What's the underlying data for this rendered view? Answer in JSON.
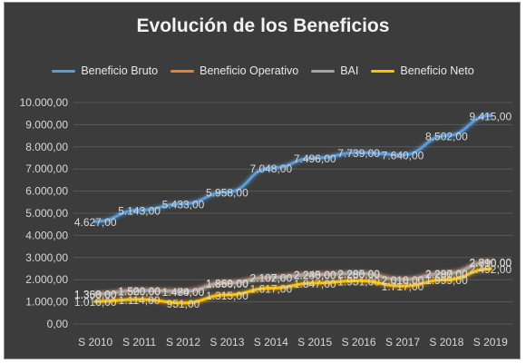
{
  "chart_data": {
    "type": "line",
    "title": "Evolución de los Beneficios",
    "categories": [
      "S 2010",
      "S 2011",
      "S 2012",
      "S 2013",
      "S 2014",
      "S 2015",
      "S 2016",
      "S 2017",
      "S 2018",
      "S 2019"
    ],
    "ylim": [
      0,
      10000
    ],
    "y_ticks": [
      "0,00",
      "1.000,00",
      "2.000,00",
      "3.000,00",
      "4.000,00",
      "5.000,00",
      "6.000,00",
      "7.000,00",
      "8.000,00",
      "9.000,00",
      "10.000,00"
    ],
    "grid": true,
    "legend_position": "top",
    "series": [
      {
        "name": "Beneficio Bruto",
        "color": "#5b9bd5",
        "values": [
          4627,
          5143,
          5433,
          5958,
          7048,
          7496,
          7739,
          7640,
          8502,
          9415
        ],
        "labels": [
          "4.627,00",
          "5.143,00",
          "5.433,00",
          "5.958,00",
          "7.048,00",
          "7.496,00",
          "7.739,00",
          "7.640,00",
          "8.502,00",
          "9.415,00"
        ]
      },
      {
        "name": "Beneficio Operativo",
        "color": "#ed7d31",
        "values": [
          1363,
          1500,
          1484,
          1869,
          2107,
          2245,
          2285,
          2016,
          2297,
          2810
        ],
        "labels": [
          "1.363,00",
          "1.500,00",
          "1.484,00",
          "1.869,00",
          "2.107,00",
          "2.245,00",
          "2.285,00",
          "2.016,00",
          "2.297,00",
          "2.810,00"
        ]
      },
      {
        "name": "BAI",
        "color": "#a5a5a5",
        "values": [
          1350,
          1520,
          1470,
          1850,
          2102,
          2230,
          2280,
          2010,
          2280,
          2790
        ],
        "labels": [
          "1.350,00",
          "1.520,00",
          "1.470,00",
          "1.850,00",
          "2.102,00",
          "2.230,00",
          "2.280,00",
          "2.010,00",
          "2.280,00",
          "2.790,00"
        ]
      },
      {
        "name": "Beneficio Neto",
        "color": "#ffc000",
        "values": [
          1016,
          1114,
          951,
          1315,
          1617,
          1847,
          1951,
          1717,
          1999,
          2492
        ],
        "labels": [
          "1.016,00",
          "1.114,00",
          "951,00",
          "1.315,00",
          "1.617,00",
          "1.847,00",
          "1.951,00",
          "1.717,00",
          "1.999,00",
          "2.492,00"
        ]
      }
    ]
  }
}
